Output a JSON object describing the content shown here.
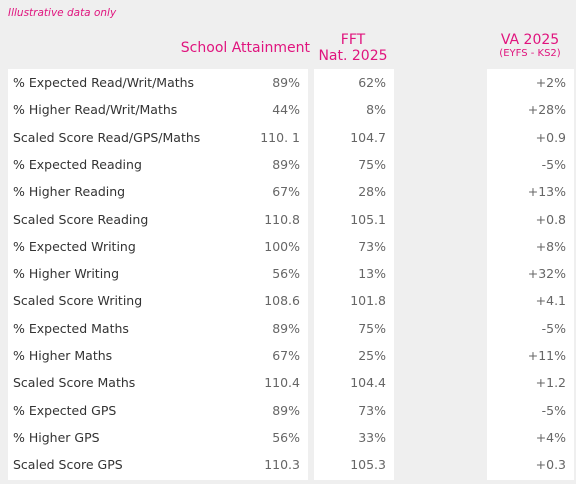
{
  "note": "Illustrative data only",
  "headers": {
    "school": "School Attainment",
    "fft_line1": "FFT",
    "fft_line2": "Nat. 2025",
    "va_line1": "VA 2025",
    "va_line2": "(EYFS - KS2)"
  },
  "rows": [
    {
      "label": "% Expected Read/Writ/Maths",
      "school": "89%",
      "fft": "62%",
      "va": "+2%"
    },
    {
      "label": "% Higher Read/Writ/Maths",
      "school": "44%",
      "fft": "8%",
      "va": "+28%"
    },
    {
      "label": "Scaled Score Read/GPS/Maths",
      "school": "110. 1",
      "fft": "104.7",
      "va": "+0.9"
    },
    {
      "label": "% Expected Reading",
      "school": "89%",
      "fft": "75%",
      "va": "-5%"
    },
    {
      "label": "% Higher Reading",
      "school": "67%",
      "fft": "28%",
      "va": "+13%"
    },
    {
      "label": "Scaled Score Reading",
      "school": "110.8",
      "fft": "105.1",
      "va": "+0.8"
    },
    {
      "label": "% Expected Writing",
      "school": "100%",
      "fft": "73%",
      "va": "+8%"
    },
    {
      "label": "% Higher Writing",
      "school": "56%",
      "fft": "13%",
      "va": "+32%"
    },
    {
      "label": "Scaled Score Writing",
      "school": "108.6",
      "fft": "101.8",
      "va": "+4.1"
    },
    {
      "label": "% Expected Maths",
      "school": "89%",
      "fft": "75%",
      "va": "-5%"
    },
    {
      "label": "% Higher Maths",
      "school": "67%",
      "fft": "25%",
      "va": "+11%"
    },
    {
      "label": "Scaled Score Maths",
      "school": "110.4",
      "fft": "104.4",
      "va": "+1.2"
    },
    {
      "label": "% Expected GPS",
      "school": "89%",
      "fft": "73%",
      "va": "-5%"
    },
    {
      "label": "% Higher GPS",
      "school": "56%",
      "fft": "33%",
      "va": "+4%"
    },
    {
      "label": "Scaled Score GPS",
      "school": "110.3",
      "fft": "105.3",
      "va": "+0.3"
    }
  ],
  "colors": {
    "accent": "#e0147e",
    "background": "#efefef",
    "panel": "#ffffff"
  }
}
